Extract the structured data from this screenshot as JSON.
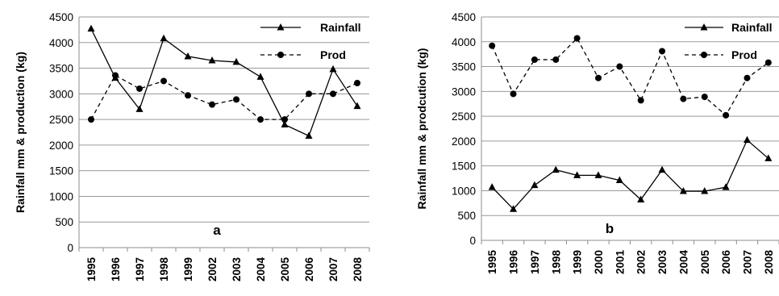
{
  "chart_data": [
    {
      "type": "line",
      "panel_label": "a",
      "ylabel": "Rainfall mm & production (kg)",
      "xlabel": "",
      "ylim": [
        0,
        4500
      ],
      "yticks": [
        0,
        500,
        1000,
        1500,
        2000,
        2500,
        3000,
        3500,
        4000,
        4500
      ],
      "grid": true,
      "legend_position": "top-right",
      "categories": [
        "1995",
        "1996",
        "1997",
        "1998",
        "1999",
        "2002",
        "2003",
        "2004",
        "2005",
        "2006",
        "2007",
        "2008"
      ],
      "series": [
        {
          "name": "Rainfall",
          "style": "solid",
          "marker": "triangle",
          "values": [
            4270,
            3310,
            2700,
            4080,
            3730,
            3650,
            3620,
            3330,
            2400,
            2180,
            3480,
            2760
          ]
        },
        {
          "name": "Prod",
          "style": "dashed",
          "marker": "circle",
          "values": [
            2500,
            3360,
            3100,
            3250,
            2970,
            2790,
            2890,
            2500,
            2500,
            3000,
            3000,
            3210
          ]
        }
      ]
    },
    {
      "type": "line",
      "panel_label": "b",
      "ylabel": "Rainfall mm & prodcution (kg)",
      "xlabel": "",
      "ylim": [
        0,
        4500
      ],
      "yticks": [
        0,
        500,
        1000,
        1500,
        2000,
        2500,
        3000,
        3500,
        4000,
        4500
      ],
      "grid": true,
      "legend_position": "top-right",
      "categories": [
        "1995",
        "1996",
        "1997",
        "1998",
        "1999",
        "2000",
        "2001",
        "2002",
        "2003",
        "2004",
        "2005",
        "2006",
        "2007",
        "2008"
      ],
      "series": [
        {
          "name": "Rainfall",
          "style": "solid",
          "marker": "triangle",
          "values": [
            1070,
            630,
            1110,
            1420,
            1310,
            1310,
            1210,
            820,
            1420,
            990,
            990,
            1070,
            2020,
            1650
          ]
        },
        {
          "name": "Prod",
          "style": "dashed",
          "marker": "circle",
          "values": [
            3920,
            2950,
            3640,
            3640,
            4070,
            3270,
            3500,
            2820,
            3810,
            2850,
            2890,
            2520,
            3270,
            3580
          ]
        }
      ]
    }
  ]
}
